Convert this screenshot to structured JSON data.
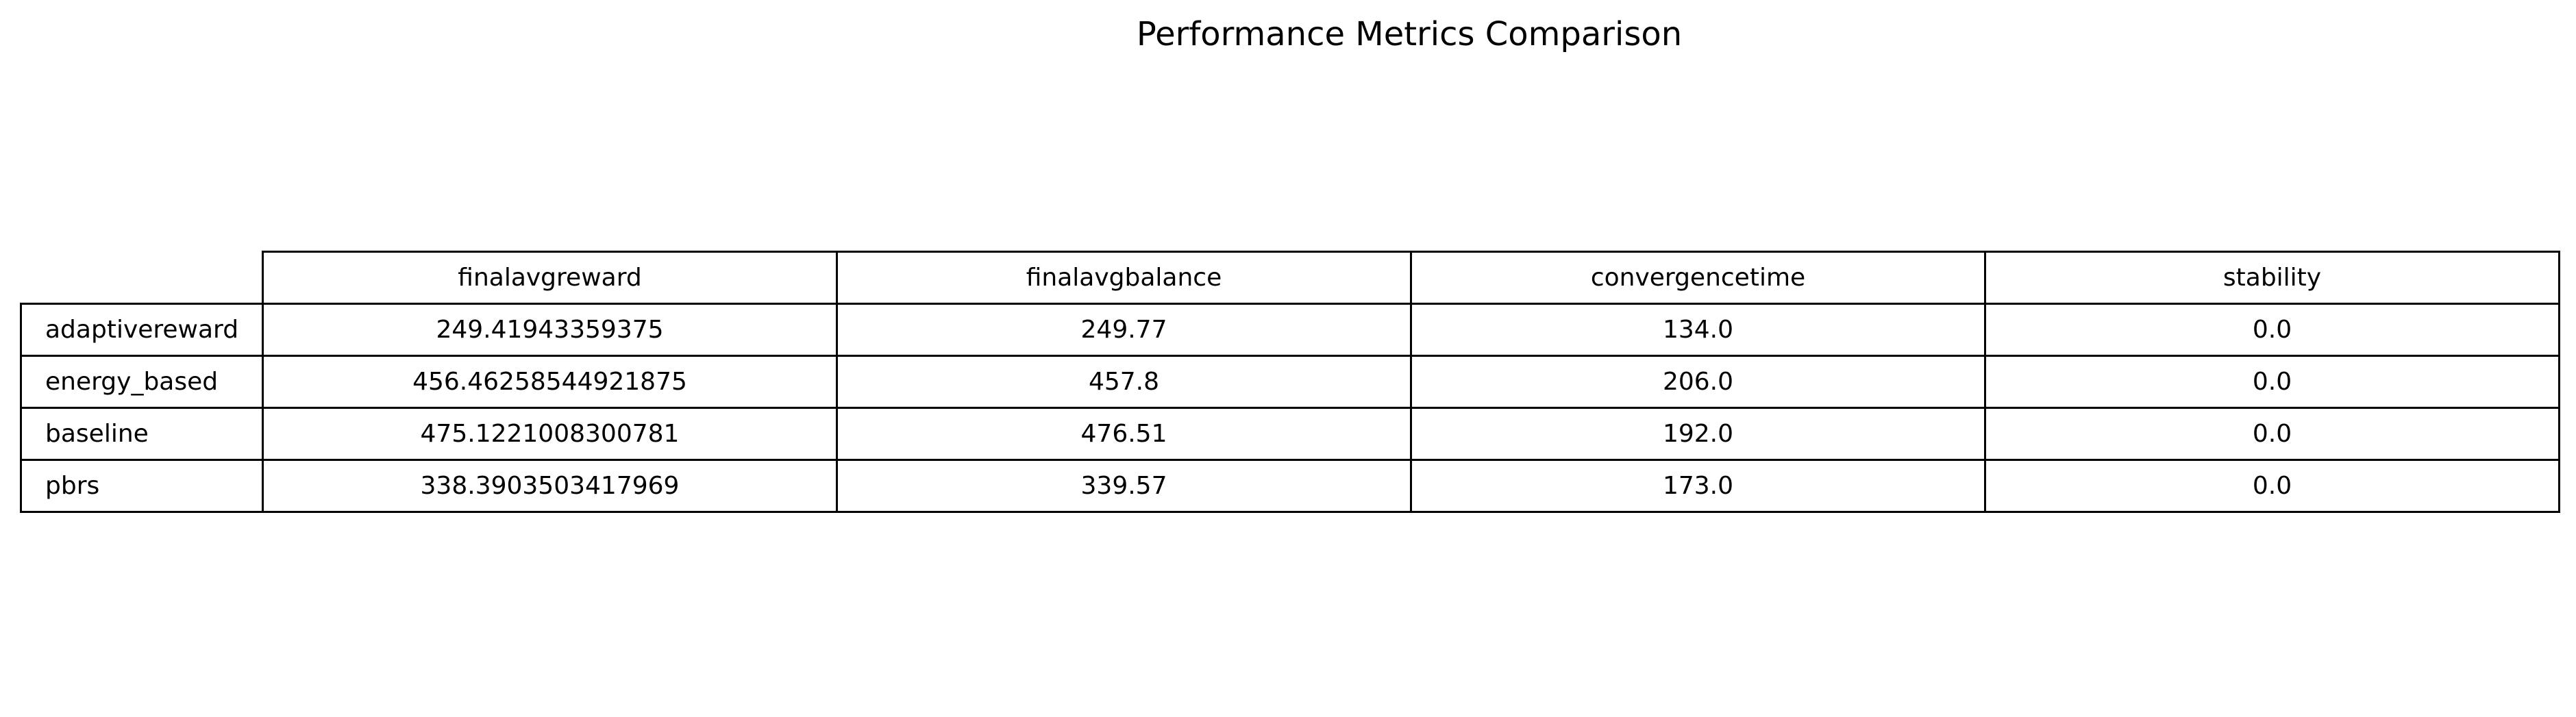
{
  "chart_data": {
    "type": "table",
    "title": "Performance Metrics Comparison",
    "columns": [
      "finalavgreward",
      "finalavgbalance",
      "convergencetime",
      "stability"
    ],
    "rows": [
      {
        "label": "adaptivereward",
        "cells": [
          "249.41943359375",
          "249.77",
          "134.0",
          "0.0"
        ]
      },
      {
        "label": "energy_based",
        "cells": [
          "456.46258544921875",
          "457.8",
          "206.0",
          "0.0"
        ]
      },
      {
        "label": "baseline",
        "cells": [
          "475.1221008300781",
          "476.51",
          "192.0",
          "0.0"
        ]
      },
      {
        "label": "pbrs",
        "cells": [
          "338.3903503417969",
          "339.57",
          "173.0",
          "0.0"
        ]
      }
    ]
  }
}
